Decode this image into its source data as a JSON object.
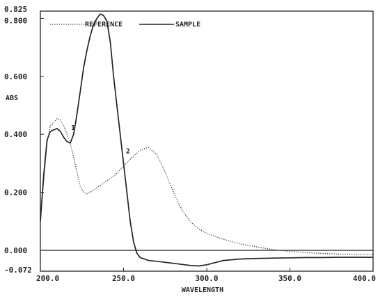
{
  "chart_data": {
    "type": "line",
    "xlabel": "WAVELENGTH",
    "ylabel": "ABS",
    "xlim": [
      200,
      400
    ],
    "ylim": [
      -0.072,
      0.825
    ],
    "x_ticks": [
      "200.0",
      "250.0",
      "300.0",
      "350.0",
      "400.0"
    ],
    "x_tick_values": [
      200,
      250,
      300,
      350,
      400
    ],
    "y_ticks": [
      "0.825",
      "0.800",
      "0.600",
      "0.400",
      "0.200",
      "0.000",
      "-0.072"
    ],
    "y_tick_values": [
      0.825,
      0.8,
      0.6,
      0.4,
      0.2,
      0.0,
      -0.072
    ],
    "legend": {
      "placement": "top",
      "entries": [
        "REFERENCE",
        "SAMPLE"
      ]
    },
    "annotations": [
      {
        "text": "1",
        "x": 218,
        "y": 0.41
      },
      {
        "text": "2",
        "x": 251,
        "y": 0.33
      }
    ],
    "baseline": 0.0,
    "series": [
      {
        "name": "REFERENCE",
        "style": "dotted",
        "x": [
          200,
          202,
          204,
          206,
          208,
          210,
          212,
          214,
          216,
          218,
          220,
          222,
          224,
          226,
          228,
          230,
          235,
          240,
          245,
          250,
          255,
          260,
          265,
          270,
          275,
          280,
          285,
          290,
          295,
          300,
          310,
          320,
          330,
          340,
          350,
          360,
          370,
          380,
          390,
          400
        ],
        "y": [
          0.11,
          0.24,
          0.37,
          0.43,
          0.44,
          0.455,
          0.45,
          0.43,
          0.4,
          0.37,
          0.32,
          0.27,
          0.22,
          0.2,
          0.195,
          0.2,
          0.22,
          0.24,
          0.26,
          0.29,
          0.32,
          0.345,
          0.355,
          0.33,
          0.27,
          0.2,
          0.14,
          0.1,
          0.075,
          0.058,
          0.038,
          0.022,
          0.012,
          0.002,
          -0.004,
          -0.008,
          -0.011,
          -0.013,
          -0.014,
          -0.015
        ]
      },
      {
        "name": "SAMPLE",
        "style": "solid",
        "x": [
          200,
          202,
          204,
          206,
          208,
          210,
          212,
          214,
          216,
          218,
          220,
          222,
          224,
          226,
          228,
          230,
          232,
          234,
          236,
          238,
          240,
          242,
          244,
          246,
          248,
          250,
          252,
          254,
          256,
          258,
          260,
          265,
          270,
          280,
          290,
          295,
          300,
          310,
          320,
          330,
          340,
          350,
          360,
          370,
          380,
          390,
          400
        ],
        "y": [
          0.1,
          0.26,
          0.38,
          0.41,
          0.415,
          0.42,
          0.41,
          0.39,
          0.375,
          0.37,
          0.4,
          0.47,
          0.55,
          0.63,
          0.69,
          0.74,
          0.78,
          0.8,
          0.815,
          0.81,
          0.79,
          0.72,
          0.6,
          0.5,
          0.4,
          0.3,
          0.2,
          0.1,
          0.03,
          -0.01,
          -0.025,
          -0.035,
          -0.038,
          -0.045,
          -0.052,
          -0.054,
          -0.05,
          -0.035,
          -0.03,
          -0.028,
          -0.027,
          -0.026,
          -0.025,
          -0.025,
          -0.024,
          -0.024,
          -0.024
        ]
      }
    ]
  }
}
